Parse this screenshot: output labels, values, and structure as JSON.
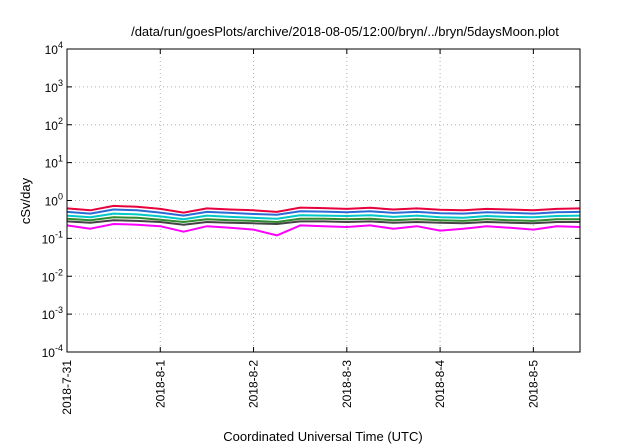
{
  "chart_data": {
    "type": "line",
    "title": "/data/run/goesPlots/archive/2018-08-05/12:00/bryn/../bryn/5daysMoon.plot",
    "xlabel": "Coordinated Universal Time (UTC)",
    "ylabel": "cSv/day",
    "y_scale": "log",
    "ylim": [
      0.0001,
      10000
    ],
    "y_ticks": [
      {
        "base": "10",
        "exp": "4"
      },
      {
        "base": "10",
        "exp": "3"
      },
      {
        "base": "10",
        "exp": "2"
      },
      {
        "base": "10",
        "exp": "1"
      },
      {
        "base": "10",
        "exp": "0"
      },
      {
        "base": "10",
        "exp": "-1"
      },
      {
        "base": "10",
        "exp": "-2"
      },
      {
        "base": "10",
        "exp": "-3"
      },
      {
        "base": "10",
        "exp": "-4"
      }
    ],
    "x_ticks": [
      "2018-7-31",
      "2018-8-1",
      "2018-8-2",
      "2018-8-3",
      "2018-8-4",
      "2018-8-5"
    ],
    "xlim": [
      "2018-07-31T00:00",
      "2018-08-05T12:00"
    ],
    "grid": true,
    "x": [
      "2018-07-31T00:00",
      "2018-07-31T06:00",
      "2018-07-31T12:00",
      "2018-07-31T18:00",
      "2018-08-01T00:00",
      "2018-08-01T06:00",
      "2018-08-01T12:00",
      "2018-08-01T18:00",
      "2018-08-02T00:00",
      "2018-08-02T06:00",
      "2018-08-02T12:00",
      "2018-08-02T18:00",
      "2018-08-03T00:00",
      "2018-08-03T06:00",
      "2018-08-03T12:00",
      "2018-08-03T18:00",
      "2018-08-04T00:00",
      "2018-08-04T06:00",
      "2018-08-04T12:00",
      "2018-08-04T18:00",
      "2018-08-05T00:00",
      "2018-08-05T06:00",
      "2018-08-05T12:00"
    ],
    "series": [
      {
        "color": "#e8003d",
        "values": [
          0.62,
          0.55,
          0.72,
          0.68,
          0.6,
          0.48,
          0.62,
          0.58,
          0.55,
          0.5,
          0.65,
          0.63,
          0.6,
          0.64,
          0.58,
          0.62,
          0.57,
          0.55,
          0.6,
          0.58,
          0.55,
          0.6,
          0.62
        ]
      },
      {
        "color": "#2a6bd6",
        "values": [
          0.5,
          0.45,
          0.58,
          0.55,
          0.48,
          0.4,
          0.5,
          0.47,
          0.44,
          0.42,
          0.52,
          0.51,
          0.49,
          0.52,
          0.47,
          0.5,
          0.46,
          0.45,
          0.49,
          0.47,
          0.45,
          0.49,
          0.5
        ]
      },
      {
        "color": "#00c8c8",
        "values": [
          0.4,
          0.36,
          0.45,
          0.43,
          0.38,
          0.32,
          0.4,
          0.37,
          0.35,
          0.33,
          0.41,
          0.4,
          0.39,
          0.41,
          0.37,
          0.4,
          0.36,
          0.35,
          0.39,
          0.37,
          0.36,
          0.39,
          0.4
        ]
      },
      {
        "color": "#2e8b2e",
        "values": [
          0.33,
          0.3,
          0.36,
          0.35,
          0.31,
          0.27,
          0.32,
          0.3,
          0.29,
          0.27,
          0.33,
          0.33,
          0.32,
          0.33,
          0.3,
          0.32,
          0.3,
          0.29,
          0.32,
          0.3,
          0.29,
          0.32,
          0.32
        ]
      },
      {
        "color": "#444444",
        "values": [
          0.28,
          0.26,
          0.3,
          0.29,
          0.27,
          0.23,
          0.27,
          0.26,
          0.25,
          0.24,
          0.28,
          0.28,
          0.27,
          0.28,
          0.26,
          0.27,
          0.26,
          0.25,
          0.27,
          0.26,
          0.25,
          0.27,
          0.27
        ]
      },
      {
        "color": "#ff00ff",
        "values": [
          0.22,
          0.18,
          0.24,
          0.23,
          0.21,
          0.15,
          0.21,
          0.19,
          0.17,
          0.12,
          0.22,
          0.21,
          0.2,
          0.22,
          0.18,
          0.21,
          0.16,
          0.18,
          0.21,
          0.19,
          0.17,
          0.21,
          0.2
        ]
      }
    ]
  }
}
